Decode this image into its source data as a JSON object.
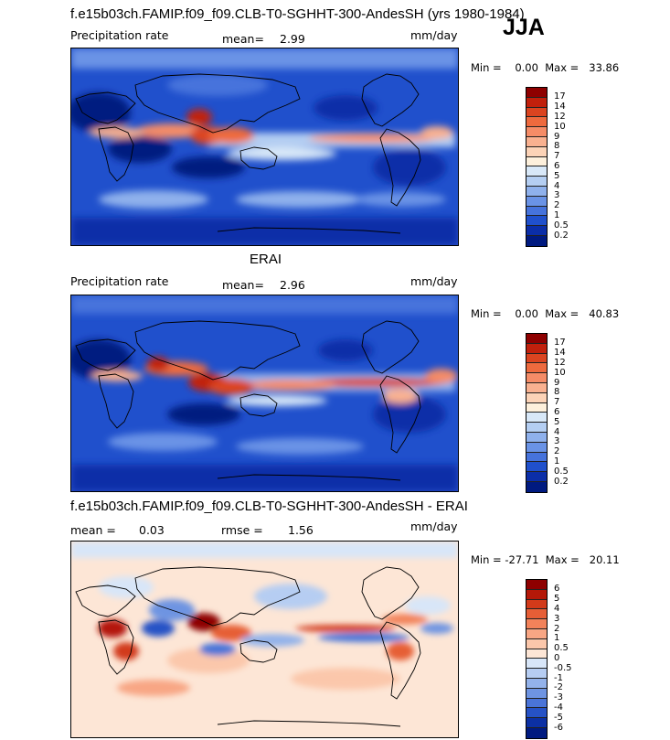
{
  "header": {
    "title": "f.e15b03ch.FAMIP.f09_f09.CLB-T0-SGHHT-300-AndesSH (yrs 1980-1984)",
    "season": "JJA"
  },
  "panel1": {
    "field": "Precipitation rate",
    "mean_label": "mean=",
    "mean_value": "2.99",
    "units": "mm/day",
    "minmax": "Min =    0.00  Max =   33.86",
    "colorbar": {
      "labels": [
        "17",
        "14",
        "12",
        "10",
        "9",
        "8",
        "7",
        "6",
        "5",
        "4",
        "3",
        "2",
        "1",
        "0.5",
        "0.2"
      ],
      "colors": [
        "#8e0000",
        "#c1200c",
        "#db4420",
        "#ee6a3e",
        "#f58c67",
        "#f9b190",
        "#fcd3b7",
        "#fdf0dc",
        "#d8e8f8",
        "#b4cef2",
        "#8fb1ec",
        "#6a93e6",
        "#4673dc",
        "#2050cc",
        "#0b2ea8",
        "#001a80"
      ]
    }
  },
  "panel2": {
    "title": "ERAI",
    "field": "Precipitation rate",
    "mean_label": "mean=",
    "mean_value": "2.96",
    "units": "mm/day",
    "minmax": "Min =    0.00  Max =   40.83",
    "colorbar": {
      "labels": [
        "17",
        "14",
        "12",
        "10",
        "9",
        "8",
        "7",
        "6",
        "5",
        "4",
        "3",
        "2",
        "1",
        "0.5",
        "0.2"
      ],
      "colors": [
        "#8e0000",
        "#c1200c",
        "#db4420",
        "#ee6a3e",
        "#f58c67",
        "#f9b190",
        "#fcd3b7",
        "#fdf0dc",
        "#d8e8f8",
        "#b4cef2",
        "#8fb1ec",
        "#6a93e6",
        "#4673dc",
        "#2050cc",
        "#0b2ea8",
        "#001a80"
      ]
    }
  },
  "panel3": {
    "title": "f.e15b03ch.FAMIP.f09_f09.CLB-T0-SGHHT-300-AndesSH - ERAI",
    "mean_label": "mean =",
    "mean_value": "0.03",
    "rmse_label": "rmse =",
    "rmse_value": "1.56",
    "units": "mm/day",
    "minmax": "Min = -27.71  Max =   20.11",
    "colorbar": {
      "labels": [
        "6",
        "5",
        "4",
        "3",
        "2",
        "1",
        "0.5",
        "0",
        "-0.5",
        "-1",
        "-2",
        "-3",
        "-4",
        "-5",
        "-6"
      ],
      "colors": [
        "#8e0000",
        "#b41808",
        "#d23a1a",
        "#e65e36",
        "#f2825a",
        "#f8a684",
        "#fbc7ab",
        "#fde6d6",
        "#d8e6f8",
        "#b6cdf2",
        "#93b2ea",
        "#6e94e2",
        "#4a74d8",
        "#2652c6",
        "#0c30a4",
        "#001a80"
      ]
    }
  }
}
